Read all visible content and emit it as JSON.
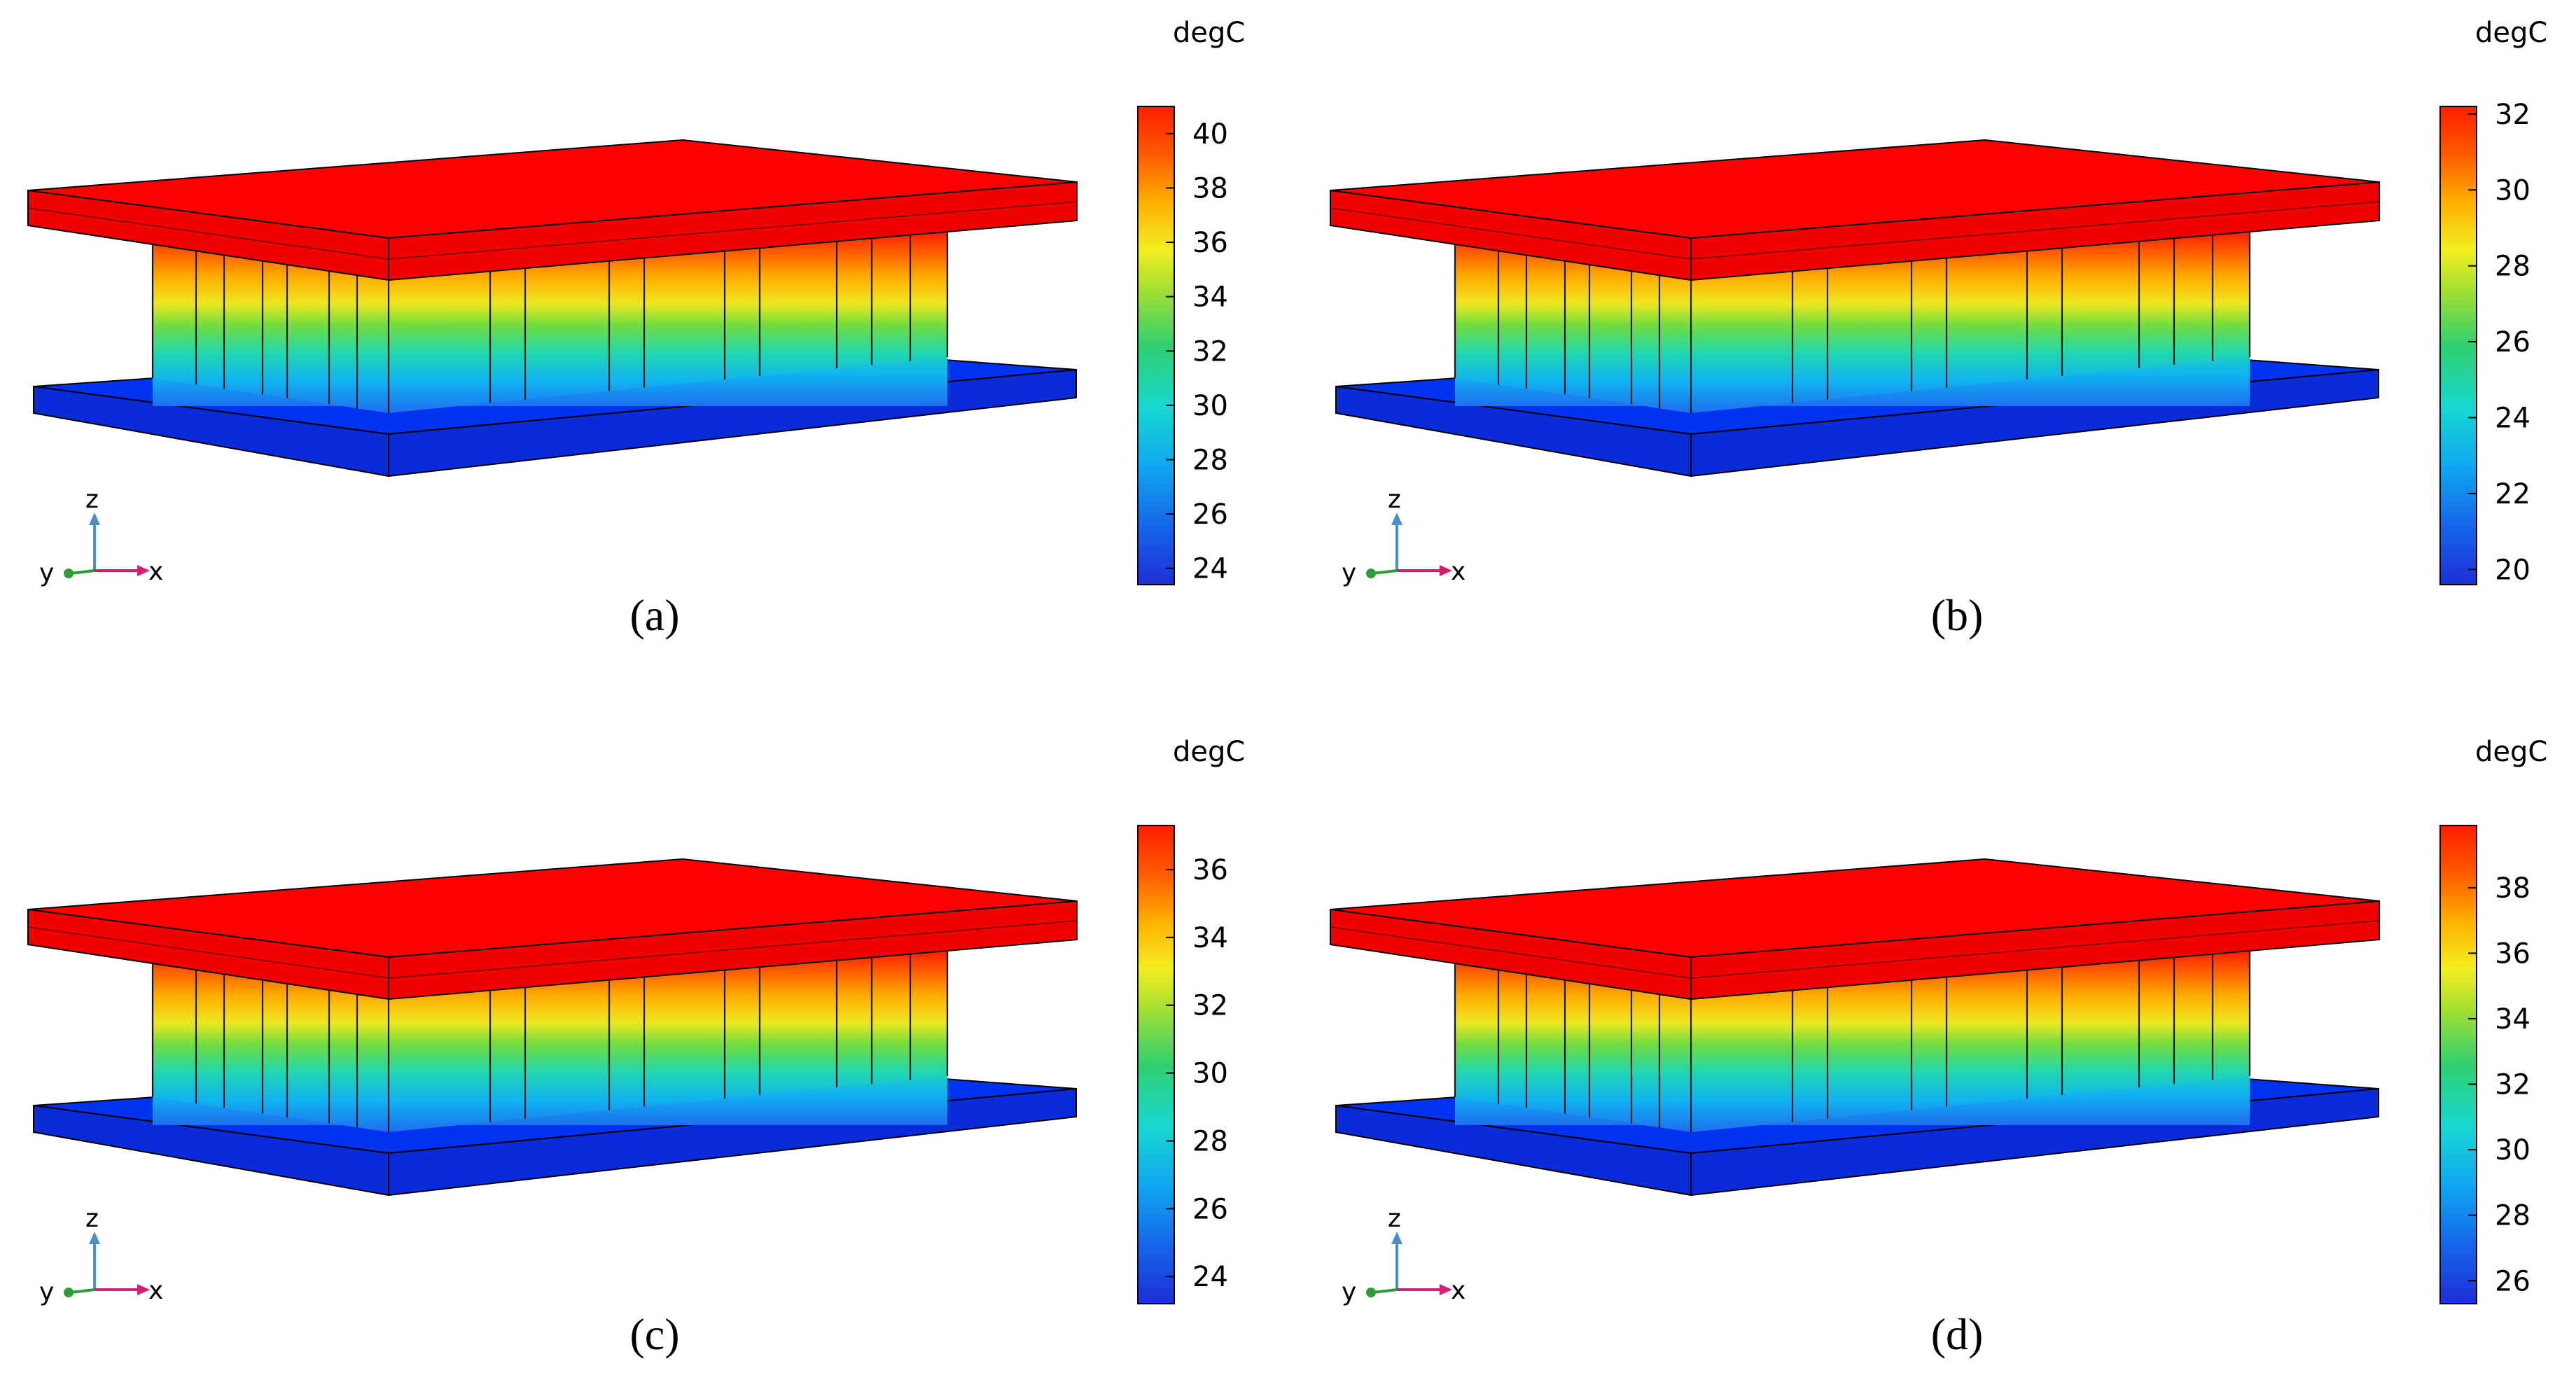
{
  "colors": {
    "hot": "#ff0000",
    "cold": "#0033ee",
    "z_axis": "#4a8fc8",
    "x_axis": "#d61e6e",
    "y_axis": "#2f9c3a"
  },
  "axis_labels": {
    "z": "z",
    "y": "y",
    "x": "x"
  },
  "panels": [
    {
      "caption": "(a)",
      "unit": "degC",
      "ticks": [
        "24",
        "26",
        "28",
        "30",
        "32",
        "34",
        "36",
        "38",
        "40"
      ],
      "min": 23.4,
      "max": 41.0
    },
    {
      "caption": "(b)",
      "unit": "degC",
      "ticks": [
        "20",
        "22",
        "24",
        "26",
        "28",
        "30",
        "32"
      ],
      "min": 19.6,
      "max": 32.2
    },
    {
      "caption": "(c)",
      "unit": "degC",
      "ticks": [
        "24",
        "26",
        "28",
        "30",
        "32",
        "34",
        "36"
      ],
      "min": 23.2,
      "max": 37.3
    },
    {
      "caption": "(d)",
      "unit": "degC",
      "ticks": [
        "26",
        "28",
        "30",
        "32",
        "34",
        "36",
        "38"
      ],
      "min": 25.3,
      "max": 39.9
    }
  ]
}
